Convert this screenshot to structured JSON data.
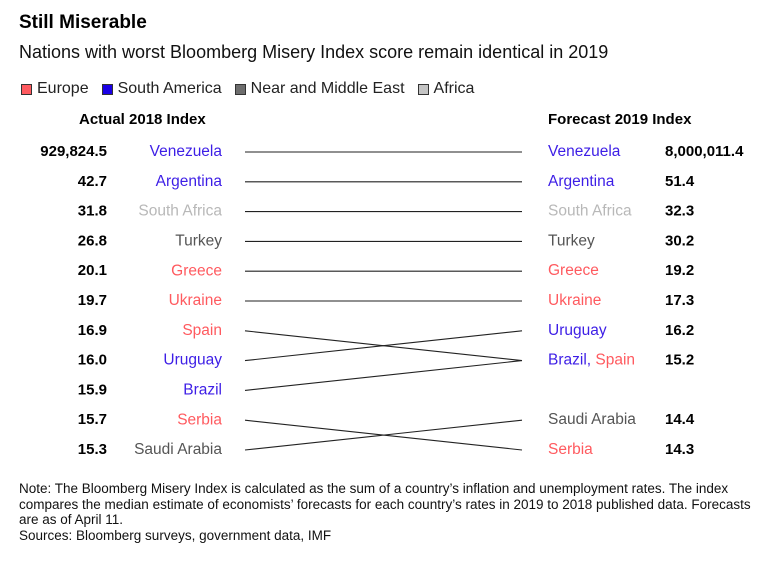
{
  "title": "Still Miserable",
  "subtitle": "Nations with worst Bloomberg Misery Index score remain identical in 2019",
  "legend": [
    {
      "label": "Europe",
      "color": "#ff5a5f"
    },
    {
      "label": "South America",
      "color": "#1a00e6"
    },
    {
      "label": "Near and Middle East",
      "color": "#6d6d6d"
    },
    {
      "label": "Africa",
      "color": "#c4c4c4"
    }
  ],
  "region_colors": {
    "Europe": "#ff5a5f",
    "South America": "#3d1ee6",
    "Near and Middle East": "#555555",
    "Africa": "#b8b8b8"
  },
  "chart_data": {
    "type": "slope",
    "left_header": "Actual 2018 Index",
    "right_header": "Forecast 2019 Index",
    "left": [
      {
        "country": "Venezuela",
        "region": "South America",
        "value": "929,824.5"
      },
      {
        "country": "Argentina",
        "region": "South America",
        "value": "42.7"
      },
      {
        "country": "South Africa",
        "region": "Africa",
        "value": "31.8"
      },
      {
        "country": "Turkey",
        "region": "Near and Middle East",
        "value": "26.8"
      },
      {
        "country": "Greece",
        "region": "Europe",
        "value": "20.1"
      },
      {
        "country": "Ukraine",
        "region": "Europe",
        "value": "19.7"
      },
      {
        "country": "Spain",
        "region": "Europe",
        "value": "16.9"
      },
      {
        "country": "Uruguay",
        "region": "South America",
        "value": "16.0"
      },
      {
        "country": "Brazil",
        "region": "South America",
        "value": "15.9"
      },
      {
        "country": "Serbia",
        "region": "Europe",
        "value": "15.7"
      },
      {
        "country": "Saudi Arabia",
        "region": "Near and Middle East",
        "value": "15.3"
      }
    ],
    "right": [
      {
        "countries": [
          {
            "name": "Venezuela",
            "region": "South America"
          }
        ],
        "value": "8,000,011.4"
      },
      {
        "countries": [
          {
            "name": "Argentina",
            "region": "South America"
          }
        ],
        "value": "51.4"
      },
      {
        "countries": [
          {
            "name": "South Africa",
            "region": "Africa"
          }
        ],
        "value": "32.3"
      },
      {
        "countries": [
          {
            "name": "Turkey",
            "region": "Near and Middle East"
          }
        ],
        "value": "30.2"
      },
      {
        "countries": [
          {
            "name": "Greece",
            "region": "Europe"
          }
        ],
        "value": "19.2"
      },
      {
        "countries": [
          {
            "name": "Ukraine",
            "region": "Europe"
          }
        ],
        "value": "17.3"
      },
      {
        "countries": [
          {
            "name": "Uruguay",
            "region": "South America"
          }
        ],
        "value": "16.2"
      },
      {
        "countries": [
          {
            "name": "Brazil",
            "region": "South America"
          },
          {
            "name": "Spain",
            "region": "Europe"
          }
        ],
        "value": "15.2"
      },
      {
        "countries": [
          {
            "name": "Saudi Arabia",
            "region": "Near and Middle East"
          }
        ],
        "value": "14.4"
      },
      {
        "countries": [
          {
            "name": "Serbia",
            "region": "Europe"
          }
        ],
        "value": "14.3"
      }
    ],
    "links": [
      {
        "from": 0,
        "to": 0
      },
      {
        "from": 1,
        "to": 1
      },
      {
        "from": 2,
        "to": 2
      },
      {
        "from": 3,
        "to": 3
      },
      {
        "from": 4,
        "to": 4
      },
      {
        "from": 5,
        "to": 5
      },
      {
        "from": 6,
        "to": 7
      },
      {
        "from": 7,
        "to": 6
      },
      {
        "from": 8,
        "to": 7
      },
      {
        "from": 9,
        "to": 9
      },
      {
        "from": 10,
        "to": 8
      }
    ]
  },
  "note": "Note: The Bloomberg Misery Index is calculated as the sum of a country’s inflation and unemployment rates. The index compares the median estimate of economists’ forecasts for each country’s rates in 2019 to 2018 published data. Forecasts are as of April 11.",
  "sources": "Sources: Bloomberg surveys, government data, IMF"
}
